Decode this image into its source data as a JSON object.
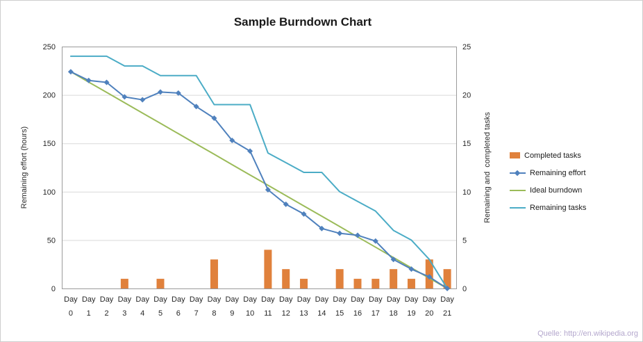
{
  "chart_data": {
    "type": "combo-bar-line",
    "title": "Sample Burndown Chart",
    "ylabel_left": "Remaining effort (hours)",
    "ylabel_right": "Remaining and  completed tasks",
    "x_prefix": "Day",
    "x": [
      0,
      1,
      2,
      3,
      4,
      5,
      6,
      7,
      8,
      9,
      10,
      11,
      12,
      13,
      14,
      15,
      16,
      17,
      18,
      19,
      20,
      21
    ],
    "ylim_left": [
      0,
      250
    ],
    "yticks_left": [
      0,
      50,
      100,
      150,
      200,
      250
    ],
    "ylim_right": [
      0,
      25
    ],
    "yticks_right": [
      0,
      5,
      10,
      15,
      20,
      25
    ],
    "grid": true,
    "legend_position": "right",
    "series": [
      {
        "name": "Completed tasks",
        "type": "bar",
        "axis": "right",
        "color": "#E0813C",
        "values": [
          0,
          0,
          0,
          1,
          0,
          1,
          0,
          0,
          3,
          0,
          0,
          4,
          2,
          1,
          0,
          2,
          1,
          1,
          2,
          1,
          3,
          2
        ]
      },
      {
        "name": "Remaining effort",
        "type": "line",
        "marker": "diamond",
        "axis": "left",
        "color": "#4F81BD",
        "values": [
          224,
          215,
          213,
          198,
          195,
          203,
          202,
          188,
          176,
          153,
          142,
          102,
          87,
          77,
          62,
          57,
          55,
          49,
          30,
          20,
          12,
          0
        ]
      },
      {
        "name": "Ideal burndown",
        "type": "line",
        "axis": "left",
        "color": "#9BBB59",
        "values": [
          224,
          213.3,
          202.7,
          192,
          181.3,
          170.7,
          160,
          149.3,
          138.7,
          128,
          117.3,
          106.7,
          96,
          85.3,
          74.7,
          64,
          53.3,
          42.7,
          32,
          21.3,
          10.7,
          0
        ]
      },
      {
        "name": "Remaining tasks",
        "type": "line",
        "axis": "right",
        "color": "#4BACC6",
        "values": [
          24,
          24,
          24,
          23,
          23,
          22,
          22,
          22,
          19,
          19,
          19,
          14,
          13,
          12,
          12,
          10,
          9,
          8,
          6,
          5,
          3,
          0
        ]
      }
    ]
  },
  "source_credit": "Quelle: http://en.wikipedia.org"
}
